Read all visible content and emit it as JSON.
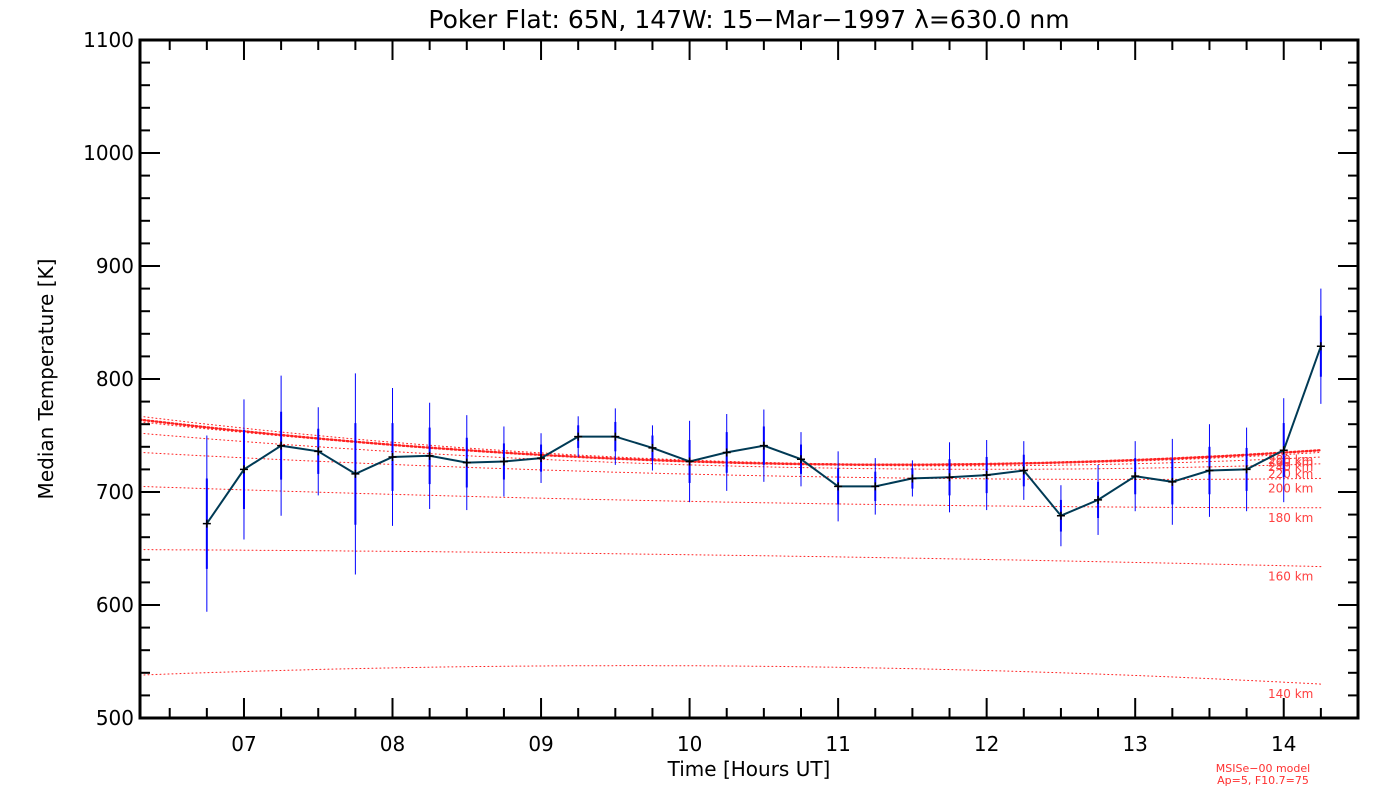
{
  "chart_data": {
    "type": "line",
    "title": "Poker Flat: 65N, 147W: 15−Mar−1997 λ=630.0 nm",
    "xlabel": "Time [Hours UT]",
    "ylabel": "Median Temperature [K]",
    "xlim": [
      6.3,
      14.5
    ],
    "ylim": [
      500,
      1100
    ],
    "xticks": [
      7,
      8,
      9,
      10,
      11,
      12,
      13,
      14
    ],
    "xtick_labels": [
      "07",
      "08",
      "09",
      "10",
      "11",
      "12",
      "13",
      "14"
    ],
    "yticks": [
      500,
      600,
      700,
      800,
      900,
      1000,
      1100
    ],
    "ytick_labels": [
      "500",
      "600",
      "700",
      "800",
      "900",
      "1000",
      "1100"
    ],
    "grid": false,
    "series": {
      "x": [
        6.75,
        7.0,
        7.25,
        7.5,
        7.75,
        8.0,
        8.25,
        8.5,
        8.75,
        9.0,
        9.25,
        9.5,
        9.75,
        10.0,
        10.25,
        10.5,
        10.75,
        11.0,
        11.25,
        11.5,
        11.75,
        12.0,
        12.25,
        12.5,
        12.75,
        13.0,
        13.25,
        13.5,
        13.75,
        14.0,
        14.25
      ],
      "y": [
        672,
        720,
        741,
        736,
        716,
        731,
        732,
        726,
        727,
        730,
        749,
        749,
        739,
        727,
        735,
        741,
        729,
        705,
        705,
        712,
        713,
        715,
        719,
        679,
        693,
        714,
        709,
        719,
        720,
        737,
        829
      ],
      "err_outer": [
        78,
        62,
        62,
        39,
        89,
        61,
        47,
        42,
        31,
        22,
        18,
        25,
        20,
        36,
        34,
        32,
        24,
        31,
        25,
        16,
        31,
        31,
        26,
        27,
        31,
        31,
        38,
        41,
        37,
        46,
        51
      ],
      "err_inner": [
        40,
        35,
        30,
        20,
        45,
        30,
        25,
        22,
        16,
        12,
        10,
        13,
        11,
        19,
        18,
        17,
        13,
        16,
        13,
        9,
        16,
        16,
        14,
        14,
        16,
        16,
        20,
        21,
        19,
        24,
        27
      ]
    },
    "model_curves": [
      {
        "label": "140 km",
        "y_start": 538,
        "y_mid": 546,
        "y_end": 530,
        "bold": false
      },
      {
        "label": "160 km",
        "y_start": 649,
        "y_mid": 644,
        "y_end": 634,
        "bold": false
      },
      {
        "label": "180 km",
        "y_start": 705,
        "y_mid": 691,
        "y_end": 686,
        "bold": false
      },
      {
        "label": "200 km",
        "y_start": 735,
        "y_mid": 715,
        "y_end": 712,
        "bold": false
      },
      {
        "label": "220 km",
        "y_start": 752,
        "y_mid": 723,
        "y_end": 725,
        "bold": false
      },
      {
        "label": "240 km",
        "y_start": 762,
        "y_mid": 726,
        "y_end": 731,
        "bold": false
      },
      {
        "label": "260 km",
        "y_start": 767,
        "y_mid": 727,
        "y_end": 735,
        "bold": false
      },
      {
        "label": "280 km",
        "y_start": 764,
        "y_mid": 726,
        "y_end": 737,
        "bold": true
      }
    ],
    "model_note_line1": "MSISe−00 model",
    "model_note_line2": "Ap=5, F10.7=75",
    "colors": {
      "data_line": "#003a55",
      "error_bars": "#0000ff",
      "model": "#ff2020",
      "axes": "#000000"
    }
  }
}
